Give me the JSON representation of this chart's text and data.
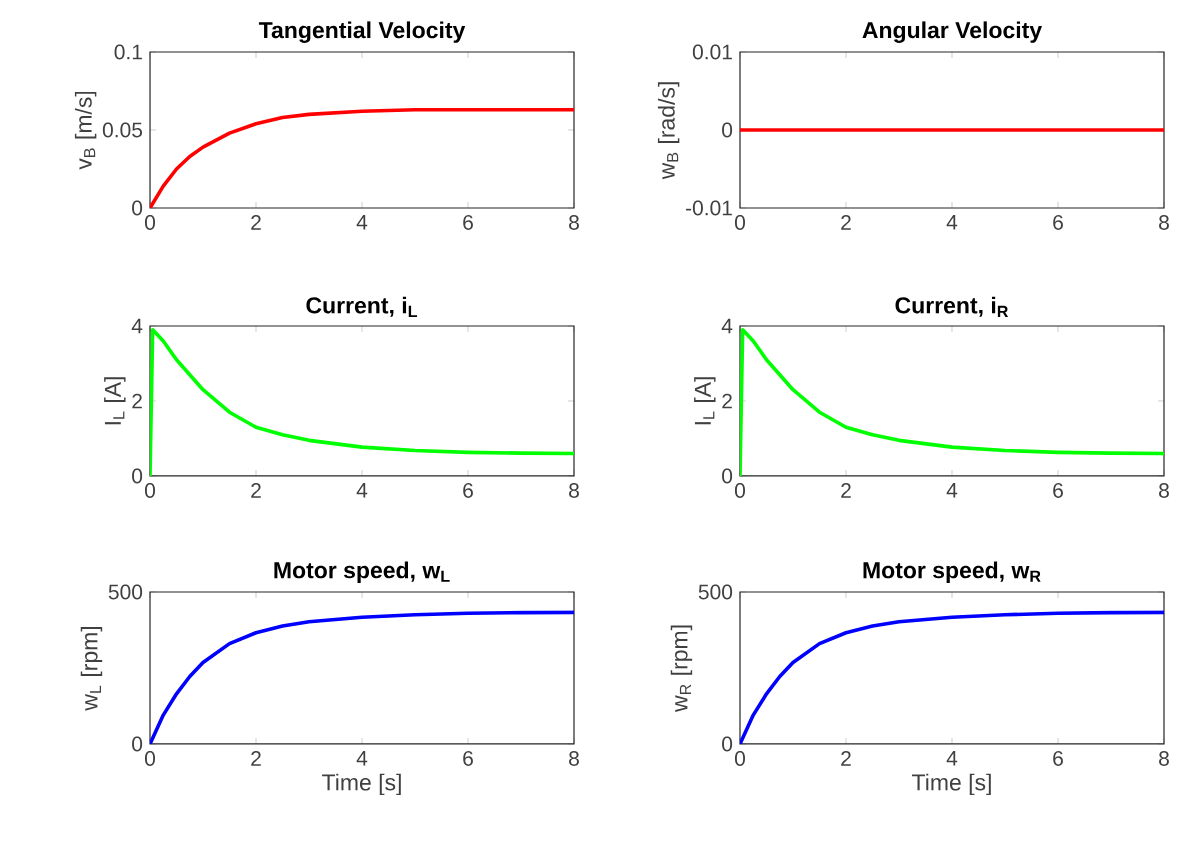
{
  "chart_data": [
    {
      "type": "line",
      "title": "Tangential Velocity",
      "ylabel": "v$_{B}$ [m/s]",
      "color": "#ff0000",
      "x": [
        0,
        0.25,
        0.5,
        0.75,
        1,
        1.5,
        2,
        2.5,
        3,
        4,
        5,
        6,
        7,
        8
      ],
      "values": [
        0,
        0.014,
        0.025,
        0.033,
        0.039,
        0.048,
        0.054,
        0.058,
        0.06,
        0.062,
        0.063,
        0.063,
        0.063,
        0.063
      ],
      "xlim": [
        0,
        8
      ],
      "xticks": [
        0,
        2,
        4,
        6,
        8
      ],
      "ylim": [
        0,
        0.1
      ],
      "yticks": [
        0,
        0.05,
        0.1
      ]
    },
    {
      "type": "line",
      "title": "Angular Velocity",
      "ylabel": "w$_{B}$ [rad/s]",
      "color": "#ff0000",
      "x": [
        0,
        2,
        4,
        6,
        8
      ],
      "values": [
        0,
        0,
        0,
        0,
        0
      ],
      "xlim": [
        0,
        8
      ],
      "xticks": [
        0,
        2,
        4,
        6,
        8
      ],
      "ylim": [
        -0.01,
        0.01
      ],
      "yticks": [
        -0.01,
        0,
        0.01
      ]
    },
    {
      "type": "line",
      "title": "Current, i$_{L}$",
      "ylabel": "I$_{L}$ [A]",
      "color": "#00ff00",
      "x": [
        0,
        0.05,
        0.25,
        0.5,
        1,
        1.5,
        2,
        2.5,
        3,
        4,
        5,
        6,
        7,
        8
      ],
      "values": [
        0,
        3.9,
        3.6,
        3.1,
        2.3,
        1.7,
        1.3,
        1.1,
        0.95,
        0.77,
        0.68,
        0.63,
        0.61,
        0.6
      ],
      "xlim": [
        0,
        8
      ],
      "xticks": [
        0,
        2,
        4,
        6,
        8
      ],
      "ylim": [
        0,
        4
      ],
      "yticks": [
        0,
        2,
        4
      ]
    },
    {
      "type": "line",
      "title": "Current, i$_{R}$",
      "ylabel": "I$_{L}$ [A]",
      "color": "#00ff00",
      "x": [
        0,
        0.05,
        0.25,
        0.5,
        1,
        1.5,
        2,
        2.5,
        3,
        4,
        5,
        6,
        7,
        8
      ],
      "values": [
        0,
        3.9,
        3.6,
        3.1,
        2.3,
        1.7,
        1.3,
        1.1,
        0.95,
        0.77,
        0.68,
        0.63,
        0.61,
        0.6
      ],
      "xlim": [
        0,
        8
      ],
      "xticks": [
        0,
        2,
        4,
        6,
        8
      ],
      "ylim": [
        0,
        4
      ],
      "yticks": [
        0,
        2,
        4
      ]
    },
    {
      "type": "line",
      "title": "Motor speed, w$_{L}$",
      "ylabel": "w$_{L}$ [rpm]",
      "xlabel": "Time [s]",
      "color": "#0000ff",
      "x": [
        0,
        0.25,
        0.5,
        0.75,
        1,
        1.5,
        2,
        2.5,
        3,
        4,
        5,
        6,
        7,
        8
      ],
      "values": [
        0,
        95,
        165,
        222,
        268,
        330,
        366,
        388,
        402,
        417,
        425,
        430,
        432,
        433
      ],
      "xlim": [
        0,
        8
      ],
      "xticks": [
        0,
        2,
        4,
        6,
        8
      ],
      "ylim": [
        0,
        500
      ],
      "yticks": [
        0,
        500
      ]
    },
    {
      "type": "line",
      "title": "Motor speed, w$_{R}$",
      "ylabel": "w$_{R}$ [rpm]",
      "xlabel": "Time [s]",
      "color": "#0000ff",
      "x": [
        0,
        0.25,
        0.5,
        0.75,
        1,
        1.5,
        2,
        2.5,
        3,
        4,
        5,
        6,
        7,
        8
      ],
      "values": [
        0,
        95,
        165,
        222,
        268,
        330,
        366,
        388,
        402,
        417,
        425,
        430,
        432,
        433
      ],
      "xlim": [
        0,
        8
      ],
      "xticks": [
        0,
        2,
        4,
        6,
        8
      ],
      "ylim": [
        0,
        500
      ],
      "yticks": [
        0,
        500
      ]
    }
  ]
}
